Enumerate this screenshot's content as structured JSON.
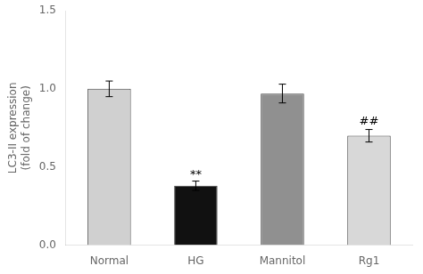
{
  "chart_data": {
    "type": "bar",
    "categories": [
      "Normal",
      "HG",
      "Mannitol",
      "Rg1"
    ],
    "values": [
      1.0,
      0.38,
      0.97,
      0.7
    ],
    "errors": [
      0.05,
      0.03,
      0.06,
      0.04
    ],
    "colors": [
      "#d0d0d0",
      "#111111",
      "#909090",
      "#d8d8d8"
    ],
    "ylabel": "LC3-II expression\n(fold of change)",
    "ylim": [
      0.0,
      1.5
    ],
    "yticks": [
      {
        "value": 0.0,
        "label": "0.0"
      },
      0.5,
      {
        "value": 1.0,
        "label": "1.0"
      },
      1.5
    ],
    "annotations": [
      {
        "text": "**",
        "x": "HG",
        "y": 0.415
      },
      {
        "text": "##",
        "x": "Rg1",
        "y": 0.755
      }
    ],
    "grid": false
  }
}
